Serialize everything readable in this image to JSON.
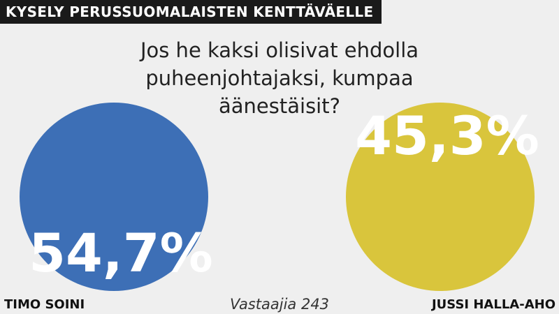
{
  "chart_data": {
    "type": "poll",
    "title": "KYSELY PERUSSUOMALAISTEN KENTTÄVÄELLE",
    "subtitle": "Jos he kaksi olisivat ehdolla puheenjohtajaksi, kumpaa äänestäisit?",
    "categories": [
      "TIMO SOINI",
      "JUSSI HALLA-AHO"
    ],
    "values": [
      54.7,
      45.3
    ],
    "value_labels": [
      "54,7%",
      "45,3%"
    ],
    "colors": [
      "#3d6fb6",
      "#d9c53c"
    ],
    "note": "Vastaajia 243"
  }
}
